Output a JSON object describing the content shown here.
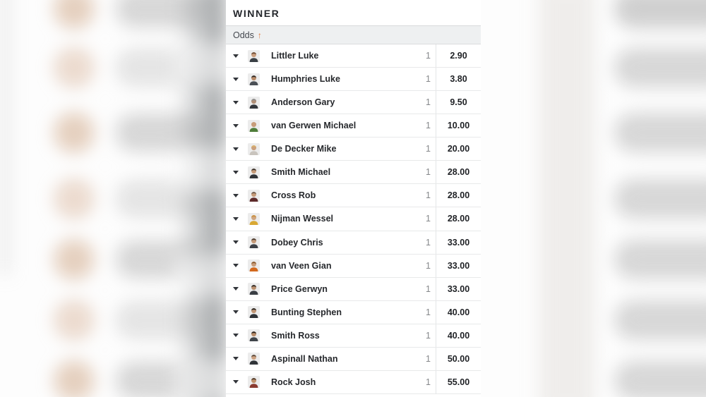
{
  "market": {
    "title": "WINNER",
    "sort_label": "Odds",
    "sort_icon": "↑"
  },
  "colors": {
    "accent_orange": "#e0763b",
    "header_bg": "#eef0f1",
    "row_divider": "#e8e9ea",
    "text_dark": "#26282c",
    "text_gray": "#85878a"
  },
  "rows": [
    {
      "name": "Littler Luke",
      "stake": "1",
      "odds": "2.90",
      "avatar": {
        "hair": "#6b4a33",
        "skin": "#c99d7d",
        "shirt": "#3a3f45"
      }
    },
    {
      "name": "Humphries Luke",
      "stake": "1",
      "odds": "3.80",
      "avatar": {
        "hair": "#2e2a27",
        "skin": "#b98b68",
        "shirt": "#4a4f55"
      }
    },
    {
      "name": "Anderson Gary",
      "stake": "1",
      "odds": "9.50",
      "avatar": {
        "hair": "#8d8d8d",
        "skin": "#b08f77",
        "shirt": "#33373c"
      }
    },
    {
      "name": "van Gerwen Michael",
      "stake": "1",
      "odds": "10.00",
      "avatar": {
        "hair": "#c79c7a",
        "skin": "#c79c7a",
        "shirt": "#4f7d3a"
      }
    },
    {
      "name": "De Decker Mike",
      "stake": "1",
      "odds": "20.00",
      "avatar": {
        "hair": "#d8b06a",
        "skin": "#caa07e",
        "shirt": "#c9c4bd"
      }
    },
    {
      "name": "Smith Michael",
      "stake": "1",
      "odds": "28.00",
      "avatar": {
        "hair": "#3a322c",
        "skin": "#c59a78",
        "shirt": "#303338"
      }
    },
    {
      "name": "Cross Rob",
      "stake": "1",
      "odds": "28.00",
      "avatar": {
        "hair": "#6e5b4e",
        "skin": "#c59a78",
        "shirt": "#5d2a2a"
      }
    },
    {
      "name": "Nijman Wessel",
      "stake": "1",
      "odds": "28.00",
      "avatar": {
        "hair": "#c98f3c",
        "skin": "#cfa57f",
        "shirt": "#d8a833"
      }
    },
    {
      "name": "Dobey Chris",
      "stake": "1",
      "odds": "33.00",
      "avatar": {
        "hair": "#4a3b30",
        "skin": "#c59a78",
        "shirt": "#3c4046"
      }
    },
    {
      "name": "van Veen Gian",
      "stake": "1",
      "odds": "33.00",
      "avatar": {
        "hair": "#8a5a2e",
        "skin": "#c79c7a",
        "shirt": "#d2691e"
      }
    },
    {
      "name": "Price Gerwyn",
      "stake": "1",
      "odds": "33.00",
      "avatar": {
        "hair": "#2f2a26",
        "skin": "#b98f6e",
        "shirt": "#3a3e44"
      }
    },
    {
      "name": "Bunting Stephen",
      "stake": "1",
      "odds": "40.00",
      "avatar": {
        "hair": "#26221f",
        "skin": "#c09574",
        "shirt": "#2e3237"
      }
    },
    {
      "name": "Smith Ross",
      "stake": "1",
      "odds": "40.00",
      "avatar": {
        "hair": "#2b241f",
        "skin": "#b88c69",
        "shirt": "#3f444a"
      }
    },
    {
      "name": "Aspinall Nathan",
      "stake": "1",
      "odds": "50.00",
      "avatar": {
        "hair": "#5a4a3c",
        "skin": "#cba181",
        "shirt": "#2f3338"
      }
    },
    {
      "name": "Rock Josh",
      "stake": "1",
      "odds": "55.00",
      "avatar": {
        "hair": "#4f3a2a",
        "skin": "#c0916b",
        "shirt": "#8a3a30"
      }
    }
  ]
}
